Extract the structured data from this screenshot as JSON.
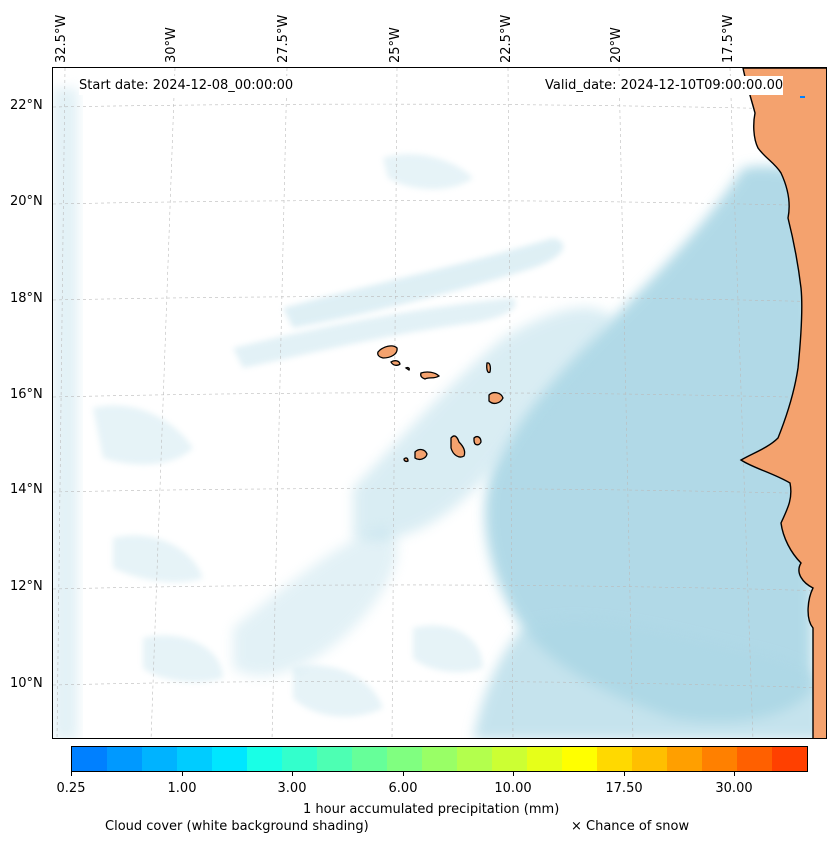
{
  "map": {
    "start_date_text": "Start date: 2024-12-08_00:00:00",
    "valid_date_text": "Valid_date: 2024-12-10T09:00:00.00",
    "longitude_labels": [
      "32.5°W",
      "30°W",
      "27.5°W",
      "25°W",
      "22.5°W",
      "20°W",
      "17.5°W"
    ],
    "latitude_labels": [
      "22°N",
      "20°N",
      "18°N",
      "16°N",
      "14°N",
      "12°N",
      "10°N"
    ],
    "extent": {
      "lon_min": -32.8,
      "lon_max": -15.3,
      "lat_min": 8.9,
      "lat_max": 22.8
    },
    "cloud_color": "#add8e6",
    "land_color": "#f4a26e",
    "coast_color": "#000000"
  },
  "colorbar": {
    "label": "1 hour accumulated precipitation (mm)",
    "tick_labels": [
      "0.25",
      "1.00",
      "3.00",
      "6.00",
      "10.00",
      "17.50",
      "30.00"
    ],
    "colors": [
      "#0080ff",
      "#0099ff",
      "#00b3ff",
      "#00ccff",
      "#00e6ff",
      "#19ffe6",
      "#33ffcc",
      "#4dffb3",
      "#66ff99",
      "#80ff80",
      "#99ff66",
      "#b3ff4d",
      "#ccff33",
      "#e6ff19",
      "#ffff00",
      "#ffd900",
      "#ffbf00",
      "#ff9f00",
      "#ff8000",
      "#ff6000",
      "#ff4000"
    ]
  },
  "legend": {
    "cloud_cover": "Cloud cover (white background shading)",
    "snow": "× Chance of snow"
  }
}
